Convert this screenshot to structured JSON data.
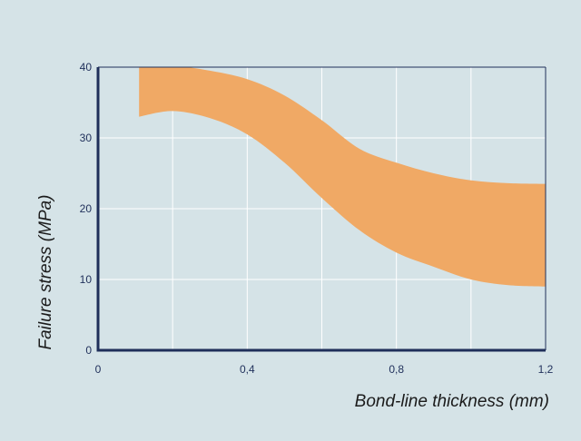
{
  "chart_data": {
    "type": "area",
    "title": "",
    "xlabel": "Bond-line thickness (mm)",
    "ylabel": "Failure stress (MPa)",
    "xlim": [
      0,
      1.2
    ],
    "ylim": [
      0,
      40
    ],
    "x_ticks": [
      {
        "value": 0,
        "label": "0"
      },
      {
        "value": 0.4,
        "label": "0,4"
      },
      {
        "value": 0.8,
        "label": "0,8"
      },
      {
        "value": 1.2,
        "label": "1,2"
      }
    ],
    "y_ticks": [
      {
        "value": 0,
        "label": "0"
      },
      {
        "value": 10,
        "label": "10"
      },
      {
        "value": 20,
        "label": "20"
      },
      {
        "value": 30,
        "label": "30"
      },
      {
        "value": 40,
        "label": "40"
      }
    ],
    "grid": true,
    "band": {
      "upper": [
        {
          "x": 0.11,
          "y": 40.0
        },
        {
          "x": 0.2,
          "y": 40.2
        },
        {
          "x": 0.3,
          "y": 39.5
        },
        {
          "x": 0.4,
          "y": 38.3
        },
        {
          "x": 0.5,
          "y": 36.0
        },
        {
          "x": 0.6,
          "y": 32.5
        },
        {
          "x": 0.7,
          "y": 28.5
        },
        {
          "x": 0.8,
          "y": 26.5
        },
        {
          "x": 0.9,
          "y": 25.0
        },
        {
          "x": 1.0,
          "y": 24.0
        },
        {
          "x": 1.1,
          "y": 23.6
        },
        {
          "x": 1.2,
          "y": 23.5
        }
      ],
      "lower": [
        {
          "x": 0.11,
          "y": 33.0
        },
        {
          "x": 0.2,
          "y": 33.8
        },
        {
          "x": 0.3,
          "y": 32.8
        },
        {
          "x": 0.4,
          "y": 30.5
        },
        {
          "x": 0.5,
          "y": 26.5
        },
        {
          "x": 0.6,
          "y": 21.5
        },
        {
          "x": 0.7,
          "y": 17.0
        },
        {
          "x": 0.8,
          "y": 13.8
        },
        {
          "x": 0.9,
          "y": 11.8
        },
        {
          "x": 1.0,
          "y": 10.0
        },
        {
          "x": 1.1,
          "y": 9.2
        },
        {
          "x": 1.2,
          "y": 9.0
        }
      ]
    },
    "colors": {
      "band": "#f0a965",
      "plot_background": "#d5e3e7",
      "grid": "#ffffff",
      "axis": "#1f2f5a"
    }
  }
}
